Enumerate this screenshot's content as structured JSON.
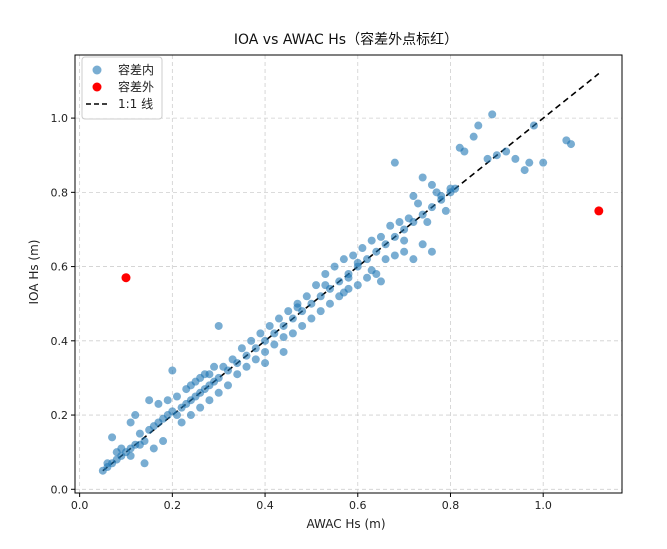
{
  "chart_data": {
    "type": "scatter",
    "title": "IOA vs AWAC Hs（容差外点标红）",
    "xlabel": "AWAC Hs (m)",
    "ylabel": "IOA Hs (m)",
    "xlim": [
      -0.01,
      1.17
    ],
    "ylim": [
      -0.01,
      1.17
    ],
    "xticks": [
      0.0,
      0.2,
      0.4,
      0.6,
      0.8,
      1.0
    ],
    "yticks": [
      0.0,
      0.2,
      0.4,
      0.6,
      0.8,
      1.0
    ],
    "xtick_labels": [
      "0.0",
      "0.2",
      "0.4",
      "0.6",
      "0.8",
      "1.0"
    ],
    "ytick_labels": [
      "0.0",
      "0.2",
      "0.4",
      "0.6",
      "0.8",
      "1.0"
    ],
    "grid": true,
    "legend_position": "top-left",
    "legend": [
      {
        "label": "容差内",
        "marker": "circle",
        "color": "#1f77b4"
      },
      {
        "label": "容差外",
        "marker": "circle",
        "color": "#ff0000"
      },
      {
        "label": "1:1 线",
        "marker": "dashed-line",
        "color": "#000000"
      }
    ],
    "series": [
      {
        "name": "容差内",
        "color": "#1f77b4",
        "points": [
          [
            0.05,
            0.05
          ],
          [
            0.06,
            0.06
          ],
          [
            0.07,
            0.07
          ],
          [
            0.08,
            0.08
          ],
          [
            0.09,
            0.09
          ],
          [
            0.1,
            0.1
          ],
          [
            0.11,
            0.11
          ],
          [
            0.12,
            0.12
          ],
          [
            0.07,
            0.14
          ],
          [
            0.11,
            0.18
          ],
          [
            0.12,
            0.2
          ],
          [
            0.15,
            0.24
          ],
          [
            0.17,
            0.23
          ],
          [
            0.2,
            0.32
          ],
          [
            0.13,
            0.12
          ],
          [
            0.14,
            0.07
          ],
          [
            0.16,
            0.11
          ],
          [
            0.18,
            0.13
          ],
          [
            0.13,
            0.15
          ],
          [
            0.15,
            0.16
          ],
          [
            0.16,
            0.17
          ],
          [
            0.18,
            0.19
          ],
          [
            0.19,
            0.2
          ],
          [
            0.2,
            0.21
          ],
          [
            0.21,
            0.2
          ],
          [
            0.22,
            0.22
          ],
          [
            0.23,
            0.23
          ],
          [
            0.24,
            0.24
          ],
          [
            0.25,
            0.25
          ],
          [
            0.26,
            0.26
          ],
          [
            0.27,
            0.27
          ],
          [
            0.28,
            0.28
          ],
          [
            0.29,
            0.29
          ],
          [
            0.3,
            0.3
          ],
          [
            0.22,
            0.18
          ],
          [
            0.24,
            0.2
          ],
          [
            0.26,
            0.22
          ],
          [
            0.28,
            0.24
          ],
          [
            0.3,
            0.26
          ],
          [
            0.32,
            0.28
          ],
          [
            0.21,
            0.25
          ],
          [
            0.23,
            0.27
          ],
          [
            0.25,
            0.29
          ],
          [
            0.27,
            0.31
          ],
          [
            0.29,
            0.33
          ],
          [
            0.31,
            0.33
          ],
          [
            0.3,
            0.44
          ],
          [
            0.32,
            0.32
          ],
          [
            0.34,
            0.34
          ],
          [
            0.36,
            0.36
          ],
          [
            0.38,
            0.38
          ],
          [
            0.4,
            0.4
          ],
          [
            0.42,
            0.42
          ],
          [
            0.44,
            0.44
          ],
          [
            0.46,
            0.46
          ],
          [
            0.48,
            0.48
          ],
          [
            0.34,
            0.31
          ],
          [
            0.36,
            0.33
          ],
          [
            0.38,
            0.35
          ],
          [
            0.4,
            0.37
          ],
          [
            0.42,
            0.39
          ],
          [
            0.44,
            0.41
          ],
          [
            0.46,
            0.42
          ],
          [
            0.48,
            0.44
          ],
          [
            0.35,
            0.38
          ],
          [
            0.37,
            0.4
          ],
          [
            0.39,
            0.42
          ],
          [
            0.41,
            0.44
          ],
          [
            0.43,
            0.46
          ],
          [
            0.45,
            0.48
          ],
          [
            0.47,
            0.5
          ],
          [
            0.49,
            0.52
          ],
          [
            0.5,
            0.5
          ],
          [
            0.52,
            0.52
          ],
          [
            0.54,
            0.54
          ],
          [
            0.56,
            0.56
          ],
          [
            0.58,
            0.58
          ],
          [
            0.6,
            0.6
          ],
          [
            0.62,
            0.62
          ],
          [
            0.64,
            0.64
          ],
          [
            0.5,
            0.46
          ],
          [
            0.52,
            0.48
          ],
          [
            0.54,
            0.5
          ],
          [
            0.56,
            0.52
          ],
          [
            0.58,
            0.54
          ],
          [
            0.6,
            0.55
          ],
          [
            0.62,
            0.57
          ],
          [
            0.64,
            0.58
          ],
          [
            0.51,
            0.55
          ],
          [
            0.53,
            0.58
          ],
          [
            0.55,
            0.6
          ],
          [
            0.57,
            0.62
          ],
          [
            0.59,
            0.63
          ],
          [
            0.61,
            0.65
          ],
          [
            0.63,
            0.67
          ],
          [
            0.65,
            0.68
          ],
          [
            0.66,
            0.66
          ],
          [
            0.68,
            0.68
          ],
          [
            0.7,
            0.7
          ],
          [
            0.72,
            0.72
          ],
          [
            0.74,
            0.74
          ],
          [
            0.76,
            0.76
          ],
          [
            0.78,
            0.78
          ],
          [
            0.8,
            0.8
          ],
          [
            0.66,
            0.62
          ],
          [
            0.68,
            0.63
          ],
          [
            0.7,
            0.64
          ],
          [
            0.72,
            0.62
          ],
          [
            0.74,
            0.66
          ],
          [
            0.76,
            0.64
          ],
          [
            0.67,
            0.71
          ],
          [
            0.69,
            0.72
          ],
          [
            0.68,
            0.88
          ],
          [
            0.72,
            0.79
          ],
          [
            0.74,
            0.84
          ],
          [
            0.76,
            0.82
          ],
          [
            0.77,
            0.8
          ],
          [
            0.78,
            0.79
          ],
          [
            0.8,
            0.81
          ],
          [
            0.81,
            0.81
          ],
          [
            0.82,
            0.92
          ],
          [
            0.83,
            0.91
          ],
          [
            0.85,
            0.95
          ],
          [
            0.86,
            0.98
          ],
          [
            0.88,
            0.89
          ],
          [
            0.89,
            1.01
          ],
          [
            0.9,
            0.9
          ],
          [
            0.92,
            0.91
          ],
          [
            0.94,
            0.89
          ],
          [
            0.96,
            0.86
          ],
          [
            0.97,
            0.88
          ],
          [
            0.98,
            0.98
          ],
          [
            1.0,
            0.88
          ],
          [
            1.05,
            0.94
          ],
          [
            1.06,
            0.93
          ],
          [
            0.73,
            0.77
          ],
          [
            0.75,
            0.72
          ],
          [
            0.79,
            0.75
          ],
          [
            0.63,
            0.59
          ],
          [
            0.65,
            0.56
          ],
          [
            0.6,
            0.61
          ],
          [
            0.57,
            0.53
          ],
          [
            0.44,
            0.37
          ],
          [
            0.4,
            0.34
          ],
          [
            0.33,
            0.35
          ],
          [
            0.28,
            0.31
          ],
          [
            0.26,
            0.3
          ],
          [
            0.24,
            0.28
          ],
          [
            0.19,
            0.24
          ],
          [
            0.17,
            0.18
          ],
          [
            0.14,
            0.13
          ],
          [
            0.11,
            0.09
          ],
          [
            0.09,
            0.11
          ],
          [
            0.08,
            0.1
          ],
          [
            0.06,
            0.07
          ],
          [
            0.47,
            0.49
          ],
          [
            0.53,
            0.55
          ],
          [
            0.58,
            0.57
          ],
          [
            0.7,
            0.67
          ],
          [
            0.71,
            0.73
          ]
        ]
      },
      {
        "name": "容差外",
        "color": "#ff0000",
        "points": [
          [
            0.1,
            0.57
          ],
          [
            1.12,
            0.75
          ]
        ]
      }
    ],
    "reference_line": {
      "label": "1:1 线",
      "x": [
        0.05,
        1.12
      ],
      "y": [
        0.05,
        1.12
      ],
      "color": "#000000",
      "style": "dashed"
    }
  }
}
